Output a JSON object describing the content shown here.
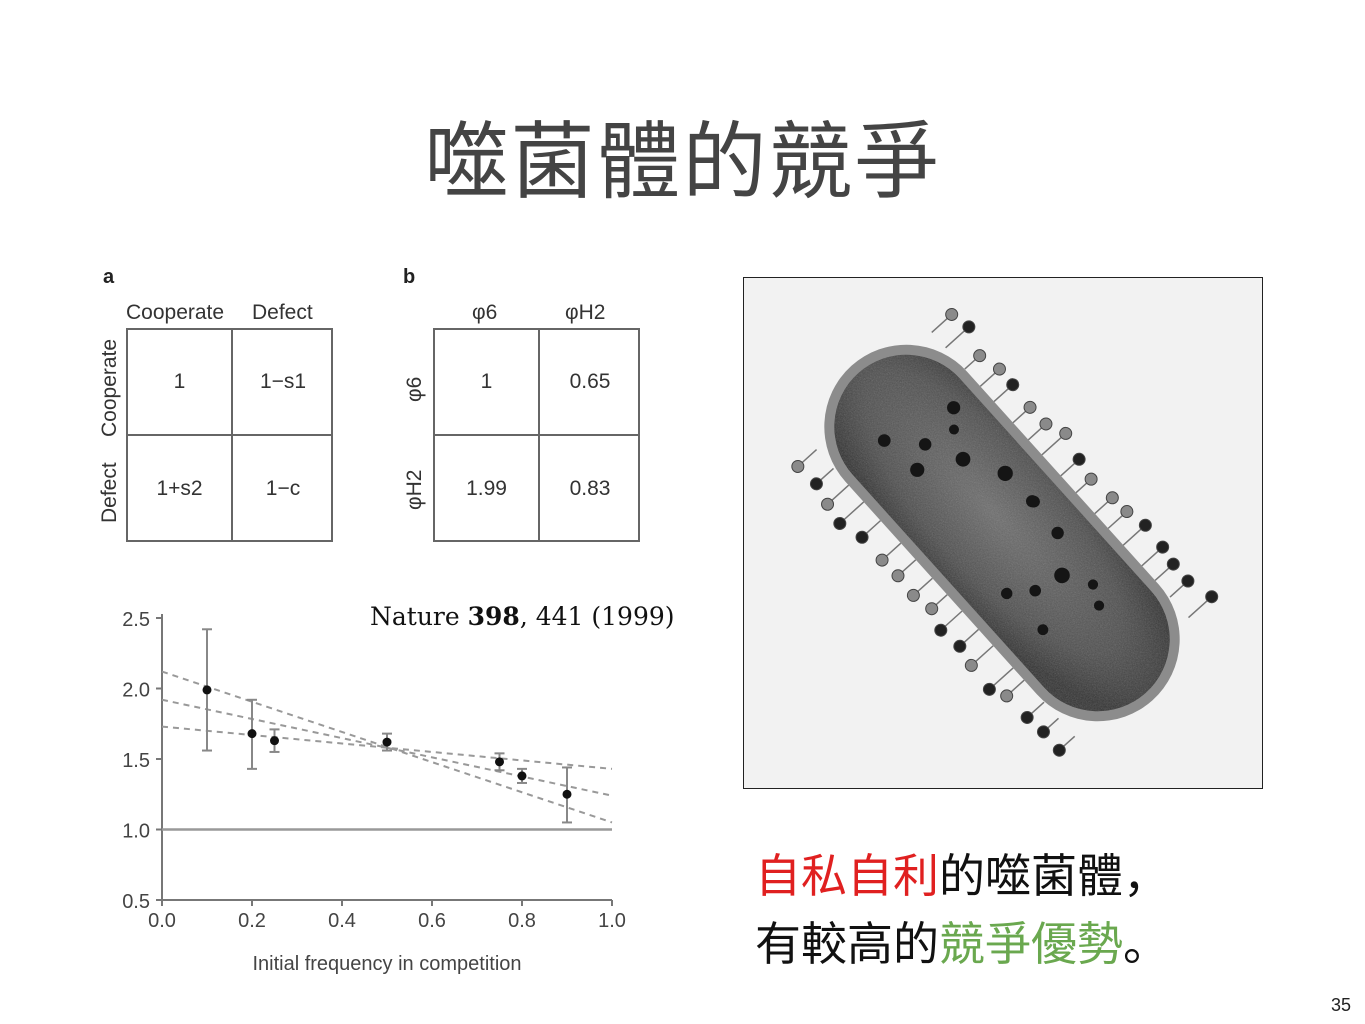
{
  "slide": {
    "title": "噬菌體的競爭",
    "page_number": "35",
    "citation": {
      "journal": "Nature",
      "volume": "398",
      "rest": ", 441 (1999)"
    },
    "caption": {
      "line1_red": "自私自利",
      "line1_rest": "的噬菌體，",
      "line2_start": "有較高的",
      "line2_green": "競爭優勢",
      "line2_end": "。"
    }
  },
  "panel_a": {
    "letter": "a",
    "col_headers": [
      "Cooperate",
      "Defect"
    ],
    "row_headers": [
      "Cooperate",
      "Defect"
    ],
    "cells": [
      [
        "1",
        "1−s1"
      ],
      [
        "1+s2",
        "1−c"
      ]
    ]
  },
  "panel_b": {
    "letter": "b",
    "col_headers": [
      "φ6",
      "φH2"
    ],
    "row_headers": [
      "φ6",
      "φH2"
    ],
    "cells": [
      [
        "1",
        "0.65"
      ],
      [
        "1.99",
        "0.83"
      ]
    ]
  },
  "chart_data": {
    "type": "scatter",
    "title": "",
    "xlabel": "Initial frequency in competition",
    "ylabel": "",
    "xlim": [
      0.0,
      1.0
    ],
    "ylim": [
      0.5,
      2.5
    ],
    "x_ticks": [
      "0.0",
      "0.2",
      "0.4",
      "0.6",
      "0.8",
      "1.0"
    ],
    "y_ticks": [
      "0.5",
      "1.0",
      "1.5",
      "2.0",
      "2.5"
    ],
    "points": [
      {
        "x": 0.1,
        "y": 1.99,
        "lo": 1.56,
        "hi": 2.42
      },
      {
        "x": 0.2,
        "y": 1.68,
        "lo": 1.43,
        "hi": 1.92
      },
      {
        "x": 0.25,
        "y": 1.63,
        "lo": 1.55,
        "hi": 1.71
      },
      {
        "x": 0.5,
        "y": 1.62,
        "lo": 1.56,
        "hi": 1.68
      },
      {
        "x": 0.75,
        "y": 1.48,
        "lo": 1.42,
        "hi": 1.54
      },
      {
        "x": 0.8,
        "y": 1.38,
        "lo": 1.33,
        "hi": 1.43
      },
      {
        "x": 0.9,
        "y": 1.25,
        "lo": 1.05,
        "hi": 1.44
      }
    ],
    "regression_lines": [
      {
        "style": "dashed",
        "x": [
          0.0,
          1.0
        ],
        "y": [
          2.12,
          1.05
        ]
      },
      {
        "style": "dashed",
        "x": [
          0.0,
          1.0
        ],
        "y": [
          1.92,
          1.24
        ]
      },
      {
        "style": "dashed",
        "x": [
          0.0,
          1.0
        ],
        "y": [
          1.73,
          1.43
        ]
      }
    ],
    "reference_line": {
      "style": "solid",
      "y": 1.0
    }
  },
  "colors": {
    "title": "#444444",
    "red_text": "#e02020",
    "green_text": "#6aa84f",
    "table_blue": "#1d3c8c"
  },
  "image": {
    "kind": "electron micrograph of a bacterium with attached bacteriophages"
  }
}
